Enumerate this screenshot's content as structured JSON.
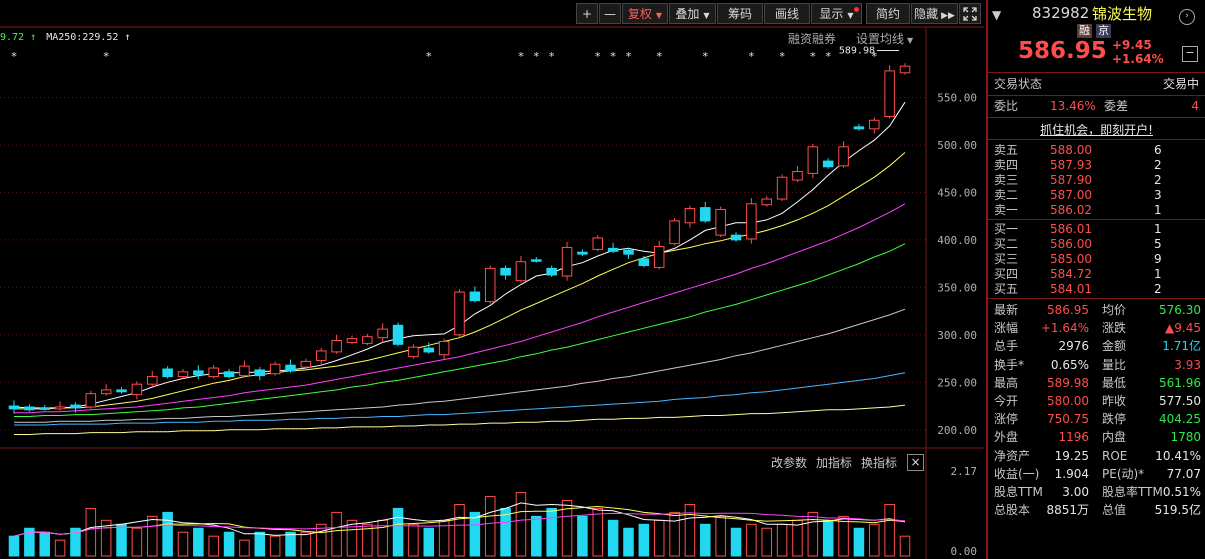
{
  "toolbar": {
    "plus": "+",
    "minus": "—",
    "fuquan": "复权",
    "diejia": "叠加",
    "chouma": "筹码",
    "huaxian": "画线",
    "xianshi": "显示",
    "jiandan": "简约",
    "yincang": "隐藏"
  },
  "ma_legend": {
    "left_value": "9.72",
    "ma250": "MA250:229.52"
  },
  "chart_links": {
    "rongzi": "融资融券",
    "shezhi": "设置均线"
  },
  "price_axis": [
    "550.00",
    "500.00",
    "450.00",
    "400.00",
    "350.00",
    "300.00",
    "250.00",
    "200.00"
  ],
  "high_marker": "589.98",
  "volume_toolbar": {
    "gaicanshu": "改参数",
    "jiazhibiao": "加指标",
    "huanzhibiao": "换指标",
    "close": "×"
  },
  "volume_axis": {
    "top": "2.17",
    "bottom": "0.00"
  },
  "stock": {
    "code": "832982",
    "name": "锦波生物",
    "tag1": "融",
    "tag2": "京",
    "price": "586.95",
    "change": "+9.45",
    "change_pct": "+1.64%"
  },
  "trade_status": {
    "label": "交易状态",
    "value": "交易中"
  },
  "weibi": {
    "label": "委比",
    "value": "13.46%",
    "label2": "委差",
    "value2": "4"
  },
  "promo": "抓住机会，即刻开户!",
  "asks": [
    {
      "label": "卖五",
      "price": "588.00",
      "vol": "6"
    },
    {
      "label": "卖四",
      "price": "587.93",
      "vol": "2"
    },
    {
      "label": "卖三",
      "price": "587.90",
      "vol": "2"
    },
    {
      "label": "卖二",
      "price": "587.00",
      "vol": "3"
    },
    {
      "label": "卖一",
      "price": "586.02",
      "vol": "1"
    }
  ],
  "bids": [
    {
      "label": "买一",
      "price": "586.01",
      "vol": "1"
    },
    {
      "label": "买二",
      "price": "586.00",
      "vol": "5"
    },
    {
      "label": "买三",
      "price": "585.00",
      "vol": "9"
    },
    {
      "label": "买四",
      "price": "584.72",
      "vol": "1"
    },
    {
      "label": "买五",
      "price": "584.01",
      "vol": "2"
    }
  ],
  "stats": [
    {
      "l1": "最新",
      "v1": "586.95",
      "c1": "red",
      "l2": "均价",
      "v2": "576.30",
      "c2": "green"
    },
    {
      "l1": "涨幅",
      "v1": "+1.64%",
      "c1": "red",
      "l2": "涨跌",
      "v2": "▲9.45",
      "c2": "red"
    },
    {
      "l1": "总手",
      "v1": "2976",
      "c1": "white",
      "l2": "金额",
      "v2": "1.71亿",
      "c2": "cyan"
    },
    {
      "l1": "换手*",
      "v1": "0.65%",
      "c1": "white",
      "l2": "量比",
      "v2": "3.93",
      "c2": "red"
    },
    {
      "l1": "最高",
      "v1": "589.98",
      "c1": "red",
      "l2": "最低",
      "v2": "561.96",
      "c2": "green"
    },
    {
      "l1": "今开",
      "v1": "580.00",
      "c1": "red",
      "l2": "昨收",
      "v2": "577.50",
      "c2": "white"
    },
    {
      "l1": "涨停",
      "v1": "750.75",
      "c1": "red",
      "l2": "跌停",
      "v2": "404.25",
      "c2": "green"
    },
    {
      "l1": "外盘",
      "v1": "1196",
      "c1": "red",
      "l2": "内盘",
      "v2": "1780",
      "c2": "green"
    },
    {
      "l1": "净资产",
      "v1": "19.25",
      "c1": "white",
      "l2": "ROE",
      "v2": "10.41%",
      "c2": "white"
    },
    {
      "l1": "收益(一)",
      "v1": "1.904",
      "c1": "white",
      "l2": "PE(动)*",
      "v2": "77.07",
      "c2": "white"
    },
    {
      "l1": "股息TTM",
      "v1": "3.00",
      "c1": "white",
      "l2": "股息率TTM",
      "v2": "0.51%",
      "c2": "white"
    },
    {
      "l1": "总股本",
      "v1": "8851万",
      "c1": "white",
      "l2": "总值",
      "v2": "519.5亿",
      "c2": "white"
    }
  ],
  "colors": {
    "up": "#ff4d4d",
    "down": "#21d8f0",
    "bg": "#000000",
    "ma5": "#ffffff",
    "ma10": "#ffff55",
    "ma20": "#ff40ff",
    "ma30": "#40ff40",
    "ma60": "#c8c8c8",
    "ma120": "#48b8ff",
    "ma250": "#ffff99"
  },
  "chart_data": {
    "type": "candlestick",
    "ylim": [
      185,
      600
    ],
    "price_ticks": [
      550,
      500,
      450,
      400,
      350,
      300,
      250,
      200
    ],
    "candles": [
      {
        "o": 225,
        "c": 222
      },
      {
        "o": 224,
        "c": 221
      },
      {
        "o": 223,
        "c": 222
      },
      {
        "o": 222,
        "c": 224
      },
      {
        "o": 226,
        "c": 223
      },
      {
        "o": 224,
        "c": 238
      },
      {
        "o": 238,
        "c": 242
      },
      {
        "o": 242,
        "c": 240
      },
      {
        "o": 237,
        "c": 248
      },
      {
        "o": 248,
        "c": 256
      },
      {
        "o": 264,
        "c": 256
      },
      {
        "o": 256,
        "c": 261
      },
      {
        "o": 262,
        "c": 258
      },
      {
        "o": 256,
        "c": 265
      },
      {
        "o": 261,
        "c": 256
      },
      {
        "o": 257,
        "c": 267
      },
      {
        "o": 263,
        "c": 257
      },
      {
        "o": 259,
        "c": 269
      },
      {
        "o": 268,
        "c": 262
      },
      {
        "o": 266,
        "c": 272
      },
      {
        "o": 273,
        "c": 283
      },
      {
        "o": 282,
        "c": 294
      },
      {
        "o": 292,
        "c": 296
      },
      {
        "o": 291,
        "c": 298
      },
      {
        "o": 297,
        "c": 306
      },
      {
        "o": 310,
        "c": 290
      },
      {
        "o": 277,
        "c": 287
      },
      {
        "o": 286,
        "c": 282
      },
      {
        "o": 279,
        "c": 293
      },
      {
        "o": 300,
        "c": 345
      },
      {
        "o": 345,
        "c": 336
      },
      {
        "o": 335,
        "c": 370
      },
      {
        "o": 370,
        "c": 363
      },
      {
        "o": 357,
        "c": 377
      },
      {
        "o": 379,
        "c": 378
      },
      {
        "o": 370,
        "c": 363
      },
      {
        "o": 362,
        "c": 392
      },
      {
        "o": 387,
        "c": 385
      },
      {
        "o": 390,
        "c": 402
      },
      {
        "o": 391,
        "c": 388
      },
      {
        "o": 389,
        "c": 385
      },
      {
        "o": 380,
        "c": 373
      },
      {
        "o": 371,
        "c": 393
      },
      {
        "o": 396,
        "c": 420
      },
      {
        "o": 418,
        "c": 433
      },
      {
        "o": 434,
        "c": 420
      },
      {
        "o": 405,
        "c": 432
      },
      {
        "o": 405,
        "c": 400
      },
      {
        "o": 401,
        "c": 438
      },
      {
        "o": 437,
        "c": 443
      },
      {
        "o": 443,
        "c": 466
      },
      {
        "o": 463,
        "c": 472
      },
      {
        "o": 470,
        "c": 498
      },
      {
        "o": 483,
        "c": 477
      },
      {
        "o": 478,
        "c": 498
      },
      {
        "o": 519,
        "c": 517
      },
      {
        "o": 517,
        "c": 526
      },
      {
        "o": 530,
        "c": 578
      },
      {
        "o": 576,
        "c": 583
      }
    ],
    "ma5": [
      224,
      223,
      223,
      223,
      224,
      227,
      231,
      235,
      239,
      245,
      250,
      254,
      257,
      259,
      260,
      260,
      261,
      262,
      263,
      265,
      268,
      273,
      279,
      285,
      292,
      296,
      299,
      300,
      301,
      310,
      322,
      331,
      343,
      353,
      362,
      365,
      372,
      376,
      383,
      389,
      391,
      388,
      386,
      391,
      400,
      410,
      414,
      418,
      418,
      421,
      428,
      440,
      453,
      468,
      482,
      494,
      505,
      520,
      545
    ],
    "ma10": [
      222,
      222,
      222,
      223,
      223,
      224,
      226,
      228,
      230,
      233,
      237,
      241,
      245,
      249,
      252,
      256,
      258,
      260,
      262,
      263,
      265,
      267,
      270,
      273,
      277,
      281,
      285,
      289,
      293,
      297,
      303,
      310,
      318,
      326,
      333,
      340,
      347,
      354,
      362,
      369,
      376,
      381,
      386,
      389,
      392,
      396,
      399,
      403,
      406,
      410,
      415,
      421,
      428,
      436,
      446,
      456,
      466,
      478,
      492
    ],
    "ma20": [
      218,
      218,
      219,
      219,
      220,
      221,
      222,
      223,
      224,
      226,
      228,
      230,
      232,
      234,
      236,
      239,
      241,
      243,
      245,
      247,
      250,
      253,
      256,
      259,
      262,
      265,
      268,
      271,
      274,
      277,
      281,
      285,
      289,
      293,
      298,
      303,
      308,
      313,
      319,
      324,
      329,
      334,
      339,
      344,
      349,
      354,
      359,
      364,
      370,
      375,
      381,
      387,
      393,
      399,
      406,
      413,
      421,
      429,
      438
    ],
    "ma30": [
      214,
      214,
      215,
      215,
      216,
      216,
      217,
      218,
      219,
      220,
      221,
      223,
      224,
      226,
      228,
      230,
      232,
      234,
      236,
      238,
      240,
      242,
      245,
      247,
      250,
      252,
      255,
      258,
      261,
      264,
      267,
      270,
      273,
      277,
      280,
      284,
      287,
      291,
      295,
      299,
      303,
      307,
      311,
      315,
      319,
      324,
      328,
      332,
      337,
      342,
      347,
      352,
      357,
      363,
      369,
      375,
      382,
      388,
      396
    ],
    "ma60": [
      208,
      208,
      208,
      209,
      209,
      209,
      210,
      210,
      211,
      211,
      212,
      212,
      213,
      214,
      214,
      215,
      216,
      217,
      218,
      219,
      220,
      221,
      222,
      223,
      224,
      226,
      227,
      229,
      230,
      232,
      234,
      236,
      238,
      240,
      242,
      244,
      246,
      249,
      251,
      254,
      256,
      259,
      262,
      265,
      268,
      271,
      274,
      278,
      281,
      285,
      289,
      293,
      297,
      301,
      306,
      311,
      316,
      321,
      327
    ],
    "ma120": [
      205,
      205,
      205,
      206,
      206,
      206,
      206,
      207,
      207,
      207,
      208,
      208,
      208,
      209,
      209,
      210,
      210,
      210,
      211,
      211,
      212,
      212,
      213,
      213,
      214,
      214,
      215,
      216,
      216,
      217,
      218,
      219,
      220,
      221,
      222,
      223,
      224,
      225,
      226,
      227,
      228,
      229,
      230,
      232,
      233,
      234,
      236,
      237,
      239,
      240,
      242,
      244,
      246,
      248,
      250,
      252,
      254,
      257,
      260
    ],
    "ma250": [
      195,
      195,
      196,
      196,
      196,
      197,
      197,
      197,
      198,
      198,
      198,
      199,
      199,
      199,
      200,
      200,
      200,
      201,
      201,
      201,
      202,
      202,
      203,
      203,
      203,
      204,
      204,
      205,
      205,
      206,
      206,
      207,
      207,
      208,
      208,
      209,
      209,
      210,
      211,
      211,
      212,
      212,
      213,
      213,
      214,
      215,
      215,
      216,
      217,
      217,
      218,
      219,
      220,
      221,
      221,
      222,
      223,
      224,
      226
    ],
    "volume": [
      0.5,
      0.7,
      0.6,
      0.4,
      0.7,
      1.2,
      0.9,
      0.8,
      0.7,
      1.0,
      1.1,
      0.6,
      0.7,
      0.5,
      0.6,
      0.4,
      0.6,
      0.5,
      0.6,
      0.6,
      0.8,
      1.1,
      0.9,
      0.8,
      0.9,
      1.2,
      0.8,
      0.7,
      0.9,
      1.3,
      1.1,
      1.5,
      1.2,
      1.6,
      1.0,
      1.2,
      1.4,
      1.0,
      1.2,
      0.9,
      0.7,
      0.8,
      0.9,
      1.1,
      1.3,
      0.8,
      1.0,
      0.7,
      0.8,
      0.7,
      0.8,
      0.9,
      1.1,
      0.9,
      1.0,
      0.7,
      0.8,
      1.3,
      0.5
    ],
    "star_positions": [
      0,
      6,
      27,
      33,
      34,
      35,
      38,
      39,
      40,
      42,
      45,
      48,
      50,
      52,
      53,
      56
    ]
  }
}
